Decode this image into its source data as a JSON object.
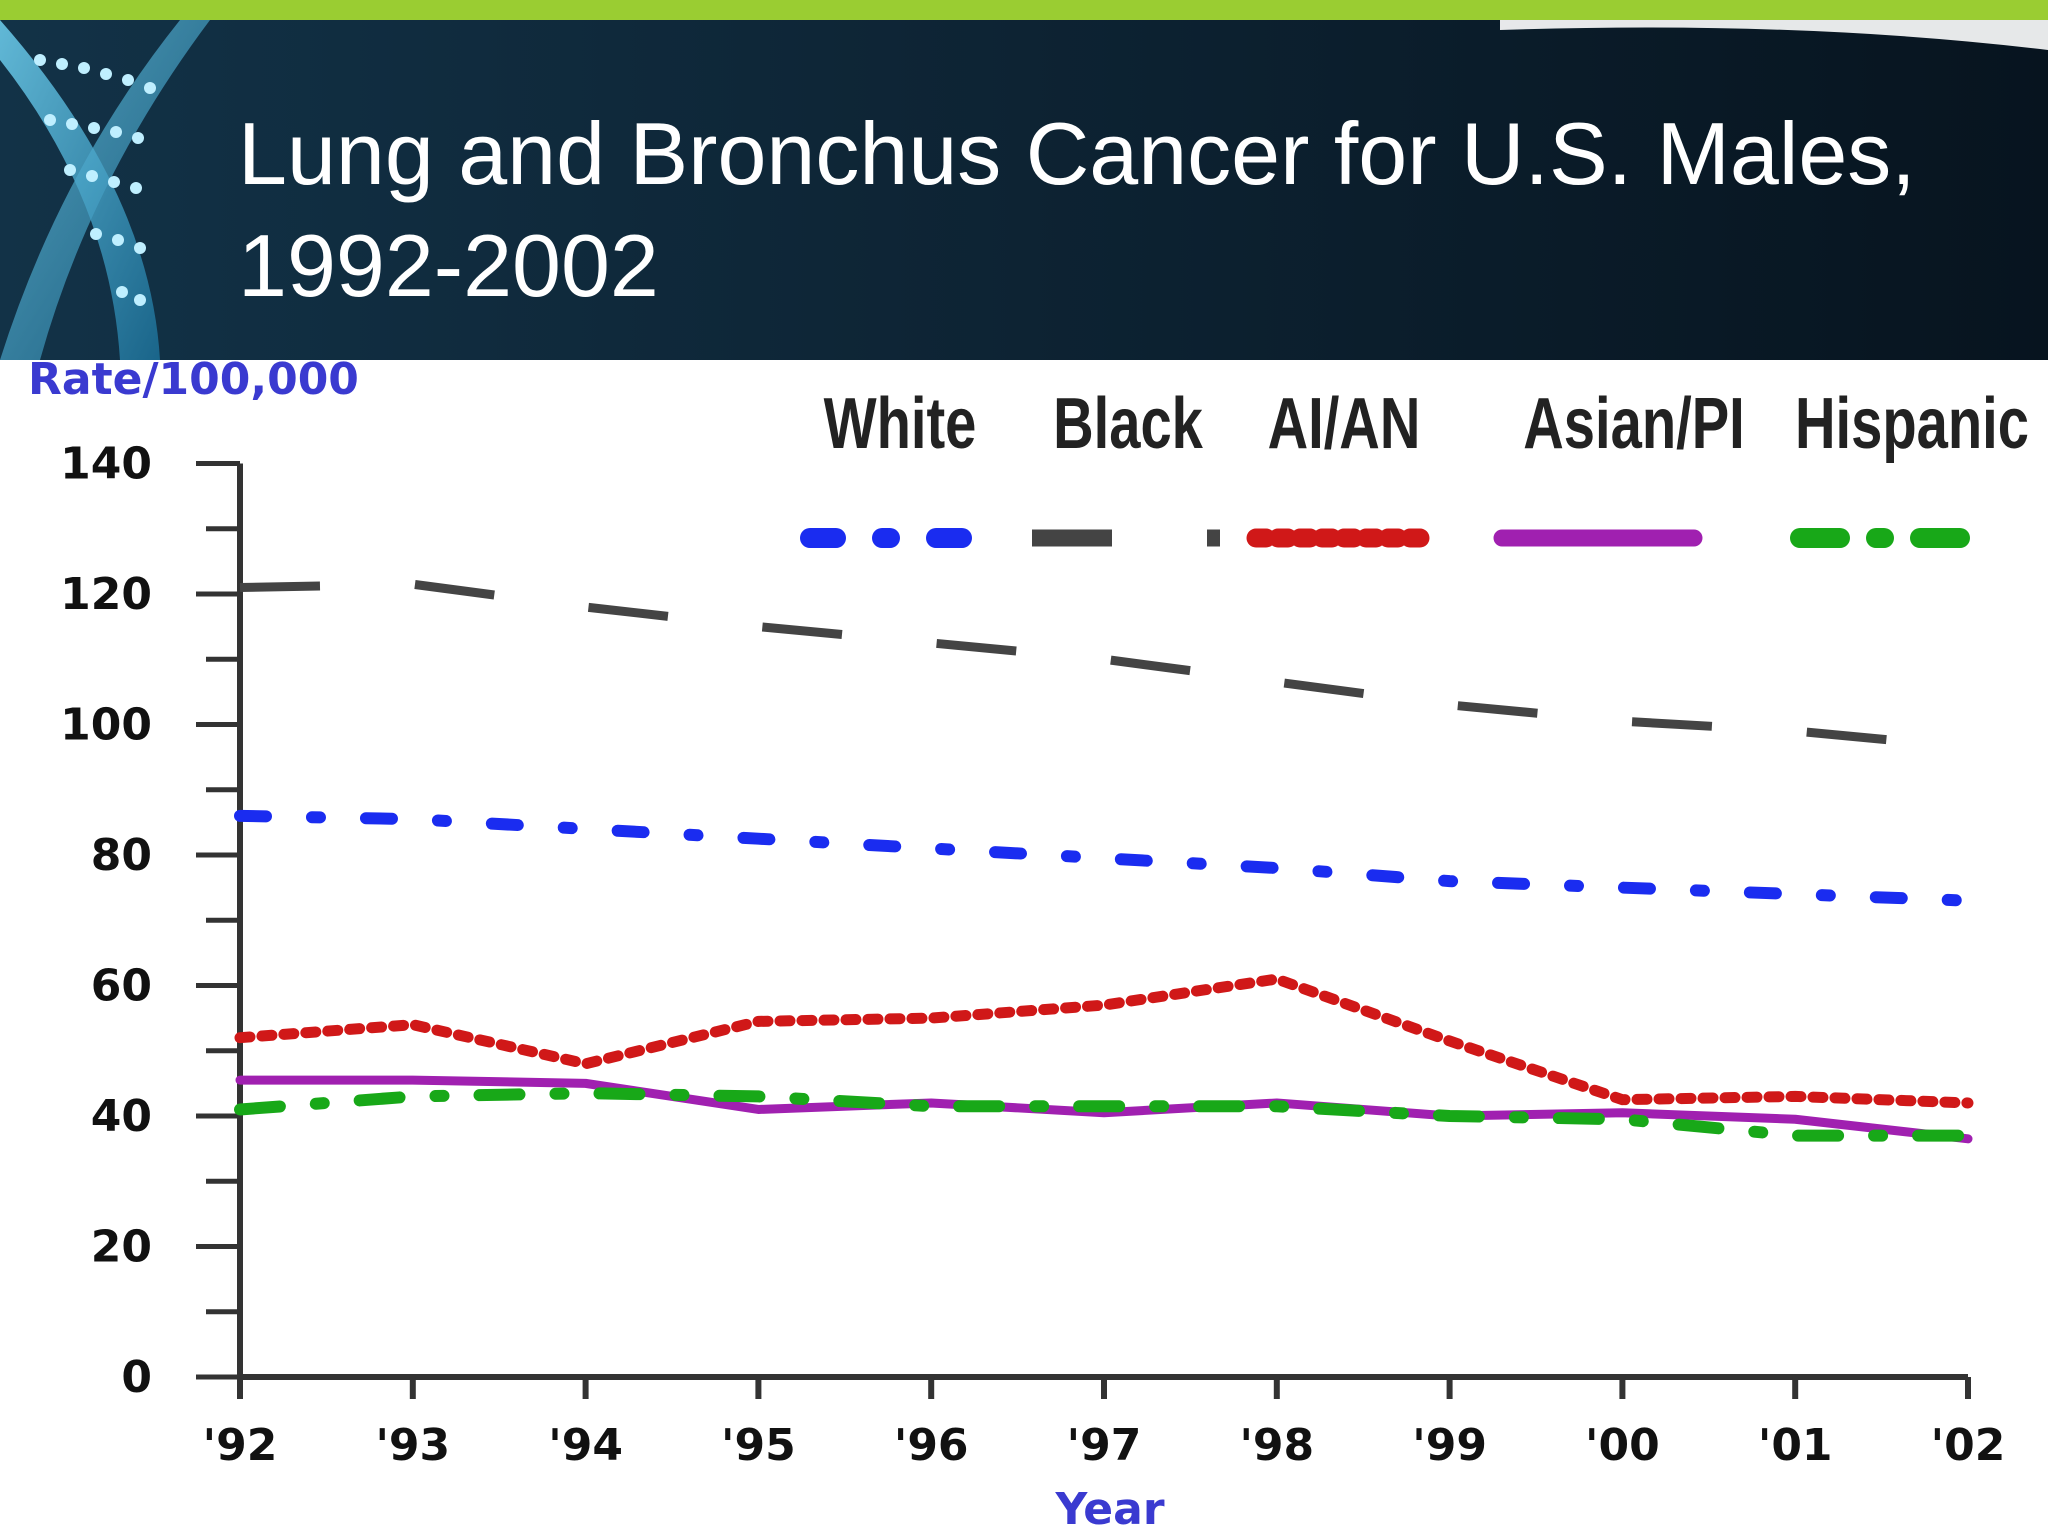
{
  "slide": {
    "title": "Lung and Bronchus Cancer for U.S. Males, 1992-2002"
  },
  "colors": {
    "top_bar": "#9acd32",
    "header_bg": "#0d2333",
    "white_series": "#1a2cf0",
    "black_series": "#444444",
    "aian_series": "#d01818",
    "asian_series": "#a020b0",
    "hispanic_series": "#18a818"
  },
  "chart_data": {
    "type": "line",
    "ylabel": "Rate/100,000",
    "xlabel": "Year",
    "ylim": [
      0,
      140
    ],
    "yticks": [
      "0",
      "20",
      "40",
      "60",
      "80",
      "100",
      "120",
      "140"
    ],
    "categories": [
      "'92",
      "'93",
      "'94",
      "'95",
      "'96",
      "'97",
      "'98",
      "'99",
      "'00",
      "'01",
      "'02"
    ],
    "legend_position": "top-right",
    "grid": false,
    "series": [
      {
        "name": "White",
        "values": [
          86,
          85.5,
          84,
          82.5,
          81,
          79.5,
          78,
          76,
          75,
          74,
          73
        ]
      },
      {
        "name": "Black",
        "values": [
          121,
          121.5,
          118,
          115,
          112.5,
          110,
          106.5,
          103,
          100.5,
          99,
          96.5
        ]
      },
      {
        "name": "AI/AN",
        "values": [
          52,
          54,
          48,
          54.5,
          55,
          57,
          61,
          51.5,
          42.5,
          43,
          42
        ]
      },
      {
        "name": "Asian/PI",
        "values": [
          45.5,
          45.5,
          45,
          41,
          42,
          40.5,
          42,
          40,
          40.5,
          39.5,
          36.5
        ]
      },
      {
        "name": "Hispanic",
        "values": [
          41,
          43,
          43.5,
          43,
          41.5,
          41.5,
          41.5,
          40,
          39.5,
          37,
          37
        ],
        "name_superscript": "††"
      }
    ]
  }
}
